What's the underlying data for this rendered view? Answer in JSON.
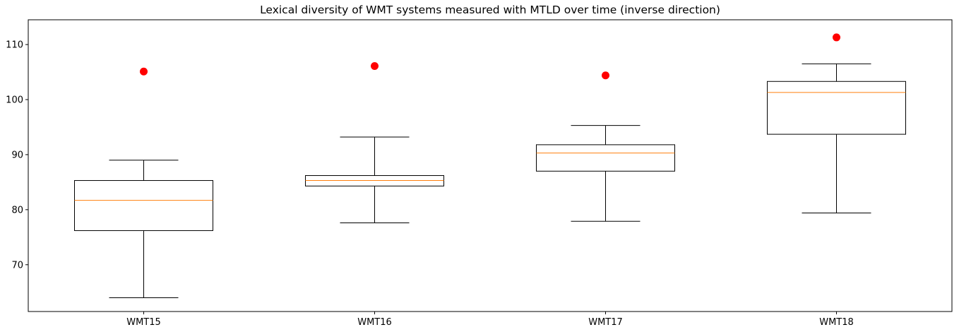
{
  "chart_data": {
    "type": "box",
    "title": "Lexical diversity of WMT systems measured with MTLD over time (inverse direction)",
    "xlabel": "",
    "ylabel": "",
    "categories": [
      "WMT15",
      "WMT16",
      "WMT17",
      "WMT18"
    ],
    "boxes": [
      {
        "whisker_low": 64.0,
        "q1": 76.2,
        "median": 81.7,
        "q3": 85.3,
        "whisker_high": 89.0,
        "marker": 105.1
      },
      {
        "whisker_low": 77.6,
        "q1": 84.3,
        "median": 85.3,
        "q3": 86.2,
        "whisker_high": 93.2,
        "marker": 106.1
      },
      {
        "whisker_low": 77.9,
        "q1": 87.0,
        "median": 90.3,
        "q3": 91.8,
        "whisker_high": 95.3,
        "marker": 104.4
      },
      {
        "whisker_low": 79.4,
        "q1": 93.7,
        "median": 101.3,
        "q3": 103.3,
        "whisker_high": 106.5,
        "marker": 111.3
      }
    ],
    "yticks": [
      70,
      80,
      90,
      100,
      110
    ],
    "ylim": [
      61.5,
      114.5
    ],
    "grid": false,
    "colors": {
      "box": "#000000",
      "median": "#ff7f0e",
      "marker": "#ff0000"
    }
  }
}
